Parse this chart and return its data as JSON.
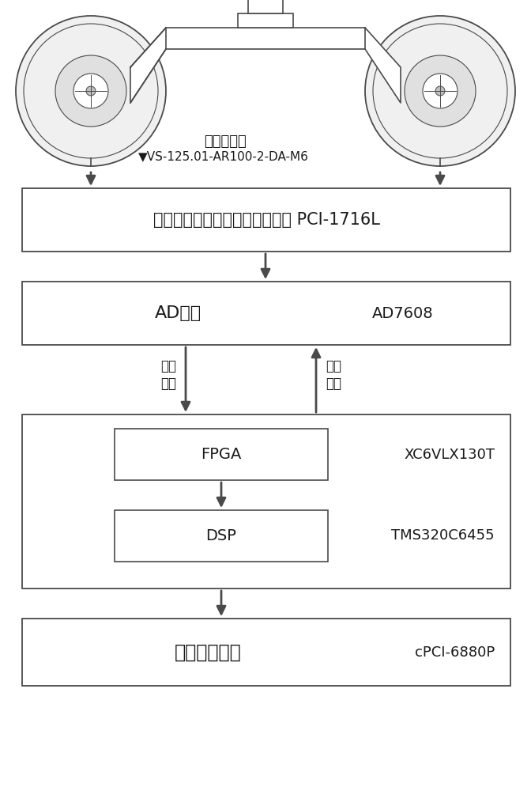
{
  "bg_color": "#ffffff",
  "line_color": "#4a4a4a",
  "text_color": "#1a1a1a",
  "sensor_label_line1": "振动传感器",
  "sensor_label_line2": "VS-125.01-AR100-2-DA-M6",
  "box1_text": "集成放大、滤波功能的采集板卡 PCI-1716L",
  "box2_text": "AD采样",
  "box2_tag": "AD7608",
  "arrow_left_label_line1": "通道",
  "arrow_left_label_line2": "选择",
  "arrow_right_label_line1": "采样",
  "arrow_right_label_line2": "控制",
  "fpga_outer_label": "XC6VLX130T",
  "fpga_inner_text": "FPGA",
  "dsp_outer_label": "TMS320C6455",
  "dsp_inner_text": "DSP",
  "box4_text": "诊断服务主机",
  "box4_tag": "cPCI-6880P",
  "figsize": [
    6.72,
    10.0
  ],
  "dpi": 100
}
